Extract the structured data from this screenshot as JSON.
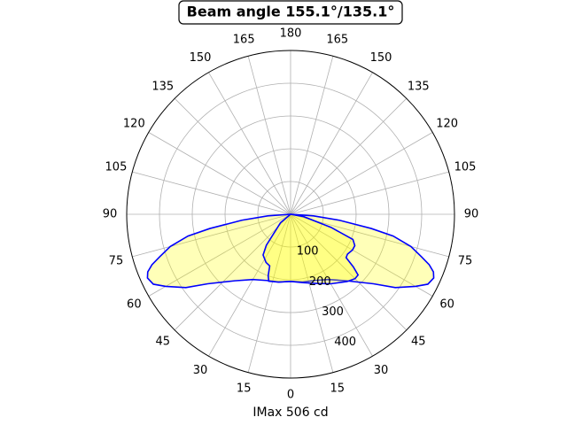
{
  "chart_data": {
    "type": "polar",
    "title": "Beam angle 155.1°/135.1°",
    "xlabel": "IMax 506 cd",
    "rlim": [
      0,
      500
    ],
    "rticks": [
      100,
      200,
      300,
      400
    ],
    "thetaticks": [
      0,
      15,
      30,
      45,
      60,
      75,
      90,
      105,
      120,
      135,
      150,
      165,
      180,
      {
        "value": 195,
        "label": "165"
      },
      {
        "value": 210,
        "label": "150"
      },
      {
        "value": 225,
        "label": "135"
      },
      {
        "value": 240,
        "label": "120"
      },
      {
        "value": 255,
        "label": "105"
      },
      {
        "value": 270,
        "label": "90"
      },
      {
        "value": 285,
        "label": "75"
      },
      {
        "value": 300,
        "label": "60"
      },
      {
        "value": 315,
        "label": "45"
      },
      {
        "value": 330,
        "label": "30"
      },
      {
        "value": 345,
        "label": "15"
      }
    ],
    "grid": true,
    "fill_color": "#ffff00",
    "series": [
      {
        "color": "#0000ff",
        "theta": [
          270,
          274,
          277,
          280,
          282,
          285,
          288,
          290,
          292,
          294,
          297,
          300,
          305,
          310,
          320,
          330,
          340,
          350,
          0,
          10,
          20,
          30,
          40,
          50,
          55,
          60,
          63,
          66,
          68,
          70,
          72,
          75,
          78,
          80,
          83,
          86,
          90
        ],
        "values": [
          0,
          70,
          150,
          250,
          320,
          380,
          420,
          450,
          470,
          478,
          470,
          440,
          390,
          330,
          265,
          230,
          215,
          210,
          205,
          210,
          215,
          230,
          265,
          330,
          390,
          440,
          470,
          478,
          470,
          450,
          420,
          380,
          320,
          250,
          150,
          70,
          0
        ]
      },
      {
        "color": "#0000ff",
        "theta": [
          270,
          310,
          322,
          326,
          333,
          338,
          340,
          342,
          350,
          0,
          10,
          22,
          30,
          40,
          45,
          48,
          50,
          52,
          55,
          60,
          64,
          68,
          72,
          80,
          90
        ],
        "values": [
          0,
          40,
          120,
          150,
          165,
          170,
          200,
          215,
          210,
          205,
          212,
          228,
          245,
          268,
          278,
          277,
          250,
          215,
          212,
          218,
          218,
          205,
          130,
          40,
          0
        ]
      }
    ]
  }
}
